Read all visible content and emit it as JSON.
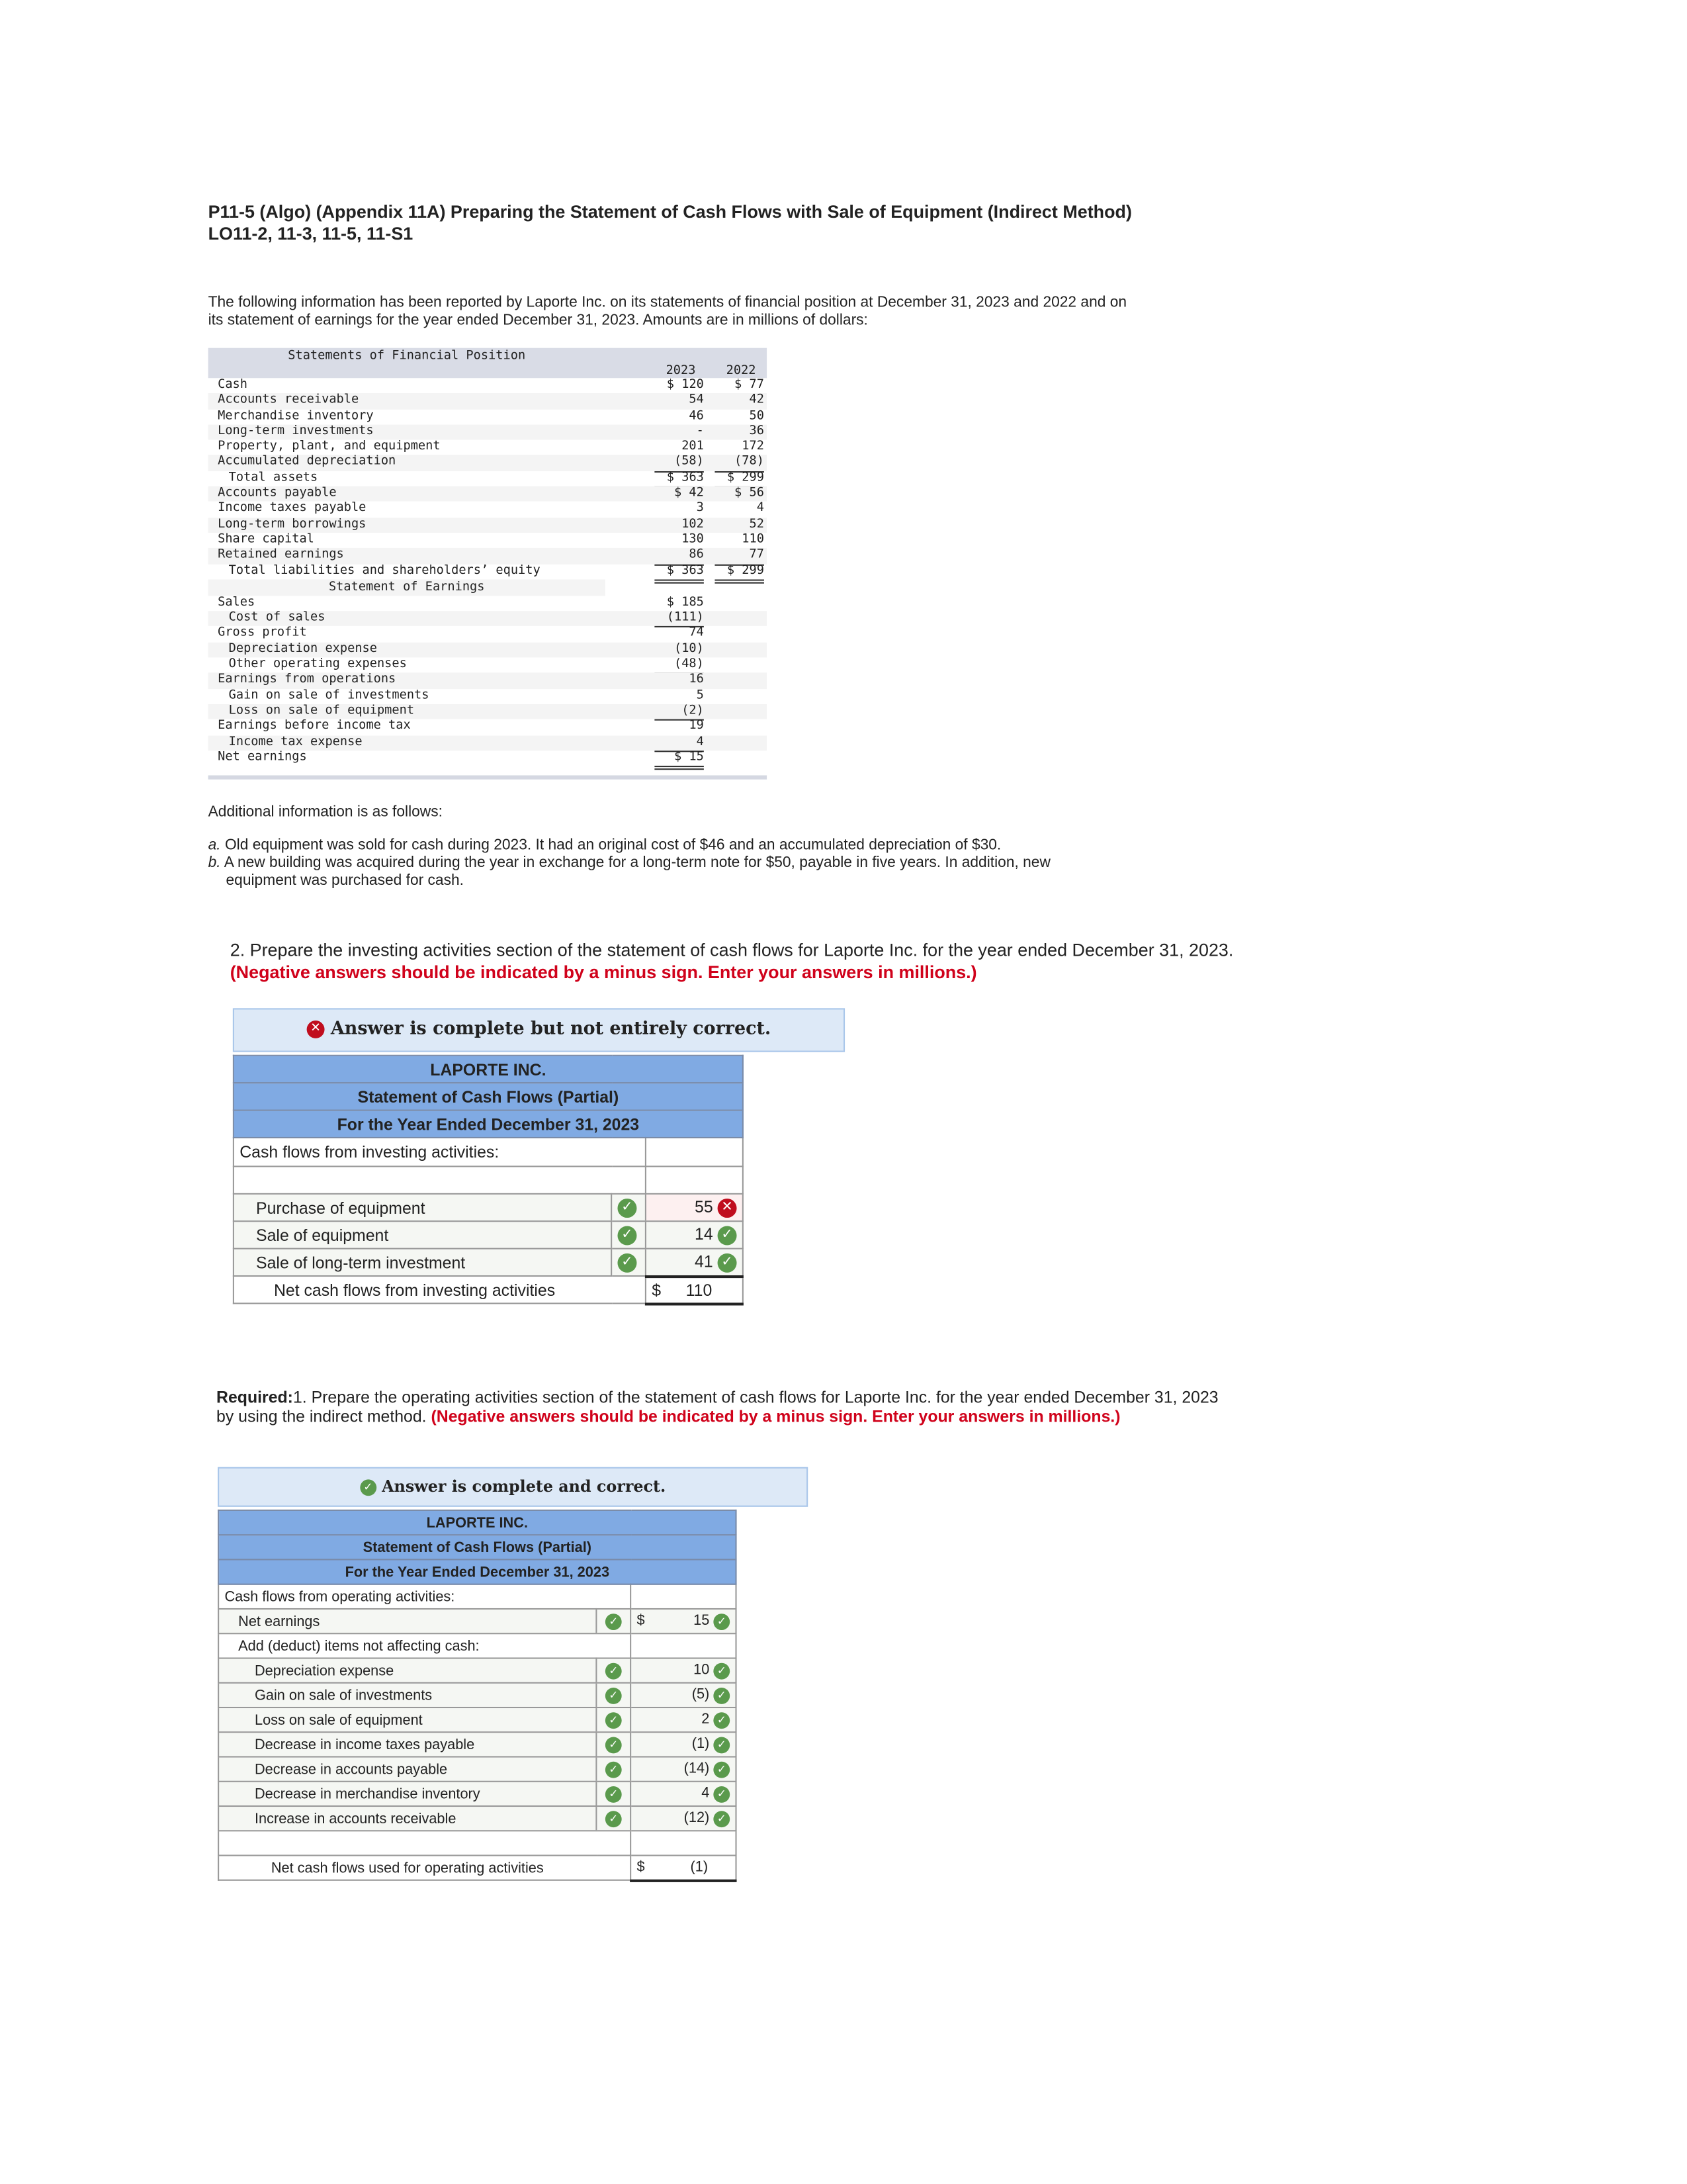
{
  "title": "P11-5 (Algo) (Appendix 11A) Preparing the Statement of Cash Flows with Sale of Equipment (Indirect Method) LO11-2, 11-3, 11-5, 11-S1",
  "intro": "The following information has been reported by Laporte Inc. on its statements of financial position at December 31, 2023 and 2022 and on its statement of earnings for the year ended December 31, 2023. Amounts are in millions of dollars:",
  "financial_position": {
    "heading": "Statements of Financial Position",
    "col1": "2023",
    "col2": "2022",
    "rows": [
      {
        "label": "Cash",
        "v1": "$ 120",
        "v2": "$  77"
      },
      {
        "label": "Accounts receivable",
        "v1": "54",
        "v2": "42"
      },
      {
        "label": "Merchandise inventory",
        "v1": "46",
        "v2": "50"
      },
      {
        "label": "Long-term investments",
        "v1": "-",
        "v2": "36"
      },
      {
        "label": "Property, plant, and equipment",
        "v1": "201",
        "v2": "172"
      },
      {
        "label": "Accumulated depreciation",
        "v1": "(58)",
        "v2": "(78)"
      },
      {
        "label": "Total assets",
        "v1": "$ 363",
        "v2": "$ 299"
      },
      {
        "label": "Accounts payable",
        "v1": "$  42",
        "v2": "$  56"
      },
      {
        "label": "Income taxes payable",
        "v1": "3",
        "v2": "4"
      },
      {
        "label": "Long-term borrowings",
        "v1": "102",
        "v2": "52"
      },
      {
        "label": "Share capital",
        "v1": "130",
        "v2": "110"
      },
      {
        "label": "Retained earnings",
        "v1": "86",
        "v2": "77"
      },
      {
        "label": "Total liabilities and shareholders’ equity",
        "v1": "$ 363",
        "v2": "$ 299"
      }
    ]
  },
  "earnings": {
    "heading": "Statement of Earnings",
    "rows": [
      {
        "label": "Sales",
        "v1": "$ 185"
      },
      {
        "label": "Cost of sales",
        "v1": "(111)"
      },
      {
        "label": "Gross profit",
        "v1": "74"
      },
      {
        "label": "Depreciation expense",
        "v1": "(10)"
      },
      {
        "label": "Other operating expenses",
        "v1": "(48)"
      },
      {
        "label": "Earnings from operations",
        "v1": "16"
      },
      {
        "label": "Gain on sale of investments",
        "v1": "5"
      },
      {
        "label": "Loss on sale of equipment",
        "v1": "(2)"
      },
      {
        "label": "Earnings before income tax",
        "v1": "19"
      },
      {
        "label": "Income tax expense",
        "v1": "4"
      },
      {
        "label": "Net earnings",
        "v1": "$  15"
      }
    ]
  },
  "additional": {
    "heading": "Additional information is as follows:",
    "a_marker": "a.",
    "a": "Old equipment was sold for cash during 2023. It had an original cost of $46 and an accumulated depreciation of $30.",
    "b_marker": "b.",
    "b": "A new building was acquired during the year in exchange for a long-term note for $50, payable in five years. In addition, new equipment was purchased for cash."
  },
  "q2": {
    "text": "2. Prepare the investing activities section of the statement of cash flows for Laporte Inc. for the year ended December 31, 2023.",
    "note": "(Negative answers should be indicated by a minus sign. Enter your answers in millions.)",
    "banner": "Answer is complete but not entirely correct.",
    "company": "LAPORTE INC.",
    "statement": "Statement of Cash Flows (Partial)",
    "period": "For the Year Ended December 31, 2023",
    "section": "Cash flows from investing activities:",
    "rows": [
      {
        "label": "Purchase of equipment",
        "value": "55",
        "status": "incorrect"
      },
      {
        "label": "Sale of equipment",
        "value": "14",
        "status": "correct"
      },
      {
        "label": "Sale of long-term investment",
        "value": "41",
        "status": "correct"
      }
    ],
    "total_label": "Net cash flows from investing activities",
    "total_currency": "$",
    "total": "110"
  },
  "required": {
    "heading": "Required:",
    "text": "1. Prepare the operating activities section of the statement of cash flows for Laporte Inc. for the year ended December 31, 2023 by using the indirect method.",
    "note": "(Negative answers should be indicated by a minus sign. Enter your answers in millions.)"
  },
  "q1": {
    "banner": "Answer is complete and correct.",
    "company": "LAPORTE INC.",
    "statement": "Statement of Cash Flows (Partial)",
    "period": "For the Year Ended December 31, 2023",
    "section": "Cash flows from operating activities:",
    "net_earnings_label": "Net earnings",
    "net_earnings_currency": "$",
    "net_earnings": "15",
    "adjust_label": "Add (deduct) items not affecting cash:",
    "rows": [
      {
        "label": "Depreciation expense",
        "value": "10"
      },
      {
        "label": "Gain on sale of investments",
        "value": "(5)"
      },
      {
        "label": "Loss on sale of equipment",
        "value": "2"
      },
      {
        "label": "Decrease in income taxes payable",
        "value": "(1)"
      },
      {
        "label": "Decrease in accounts payable",
        "value": "(14)"
      },
      {
        "label": "Decrease in merchandise inventory",
        "value": "4"
      },
      {
        "label": "Increase in accounts receivable",
        "value": "(12)"
      }
    ],
    "total_label": "Net cash flows used for operating activities",
    "total_currency": "$",
    "total": "(1)"
  },
  "colors": {
    "header_blue": "#80aae3",
    "banner_bg": "#dde9f7",
    "correct_green": "#5a9a4c",
    "incorrect_red": "#c00d1e",
    "note_red": "#d0021b"
  }
}
